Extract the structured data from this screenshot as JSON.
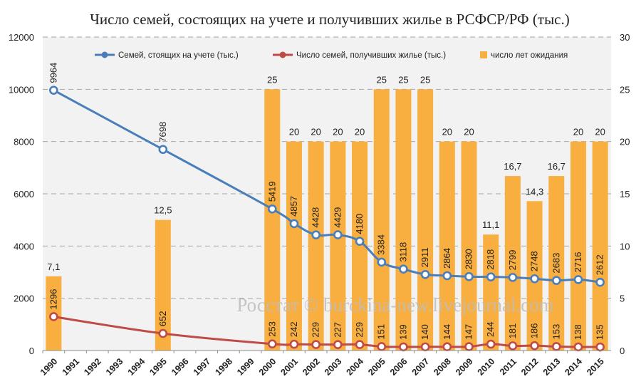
{
  "title": "Число семей, состоящих на учете и получивших жилье в РСФСР/РФ (тыс.)",
  "watermark": "Росстат © burckina-new.livejournal.com",
  "colors": {
    "queue_line": "#4A7EBB",
    "received_line": "#BE4B48",
    "bars": "#F9AF3F",
    "plot_bg": "#F2F2F2",
    "grid": "#A6A6A6"
  },
  "chart_data": {
    "type": "bar",
    "categories": [
      "1990",
      "1991",
      "1992",
      "1993",
      "1994",
      "1995",
      "1996",
      "1997",
      "1998",
      "1999",
      "2000",
      "2001",
      "2002",
      "2003",
      "2004",
      "2005",
      "2006",
      "2007",
      "2008",
      "2009",
      "2010",
      "2011",
      "2012",
      "2013",
      "2014",
      "2015"
    ],
    "y_left": {
      "ylim": [
        0,
        12000
      ],
      "ticks": [
        "0",
        "2000",
        "4000",
        "6000",
        "8000",
        "10000",
        "12000"
      ]
    },
    "y_right": {
      "ylim": [
        0,
        30
      ],
      "ticks": [
        "0",
        "5",
        "10",
        "15",
        "20",
        "25",
        "30"
      ]
    },
    "grid": true,
    "legend_position": "top",
    "series": [
      {
        "name": "Семей, стоящих на учете (тыс.)",
        "type": "line",
        "axis": "left",
        "x": [
          "1990",
          "1995",
          "2000",
          "2001",
          "2002",
          "2003",
          "2004",
          "2005",
          "2006",
          "2007",
          "2008",
          "2009",
          "2010",
          "2011",
          "2012",
          "2013",
          "2014",
          "2015"
        ],
        "values": [
          9964,
          7698,
          5419,
          4857,
          4428,
          4429,
          4180,
          3384,
          3118,
          2911,
          2864,
          2830,
          2818,
          2799,
          2748,
          2683,
          2716,
          2612
        ],
        "labels": [
          "9964",
          "7698",
          "5419",
          "4857",
          "4428",
          "4429",
          "4180",
          "3384",
          "3118",
          "2911",
          "2864",
          "2830",
          "2818",
          "2799",
          "2748",
          "2683",
          "2716",
          "2612"
        ]
      },
      {
        "name": "Число семей, получивших жилье (тыс.)",
        "type": "line",
        "axis": "left",
        "x": [
          "1990",
          "1995",
          "2000",
          "2001",
          "2002",
          "2003",
          "2004",
          "2005",
          "2006",
          "2007",
          "2008",
          "2009",
          "2010",
          "2011",
          "2012",
          "2013",
          "2014",
          "2015"
        ],
        "values": [
          1296,
          652,
          253,
          242,
          229,
          227,
          229,
          151,
          139,
          140,
          144,
          147,
          244,
          181,
          186,
          153,
          138,
          135
        ],
        "labels": [
          "1296",
          "652",
          "253",
          "242",
          "229",
          "227",
          "229",
          "151",
          "139",
          "140",
          "144",
          "147",
          "244",
          "181",
          "186",
          "153",
          "138",
          "135"
        ]
      },
      {
        "name": "число лет ожидания",
        "type": "bar",
        "axis": "right",
        "x": [
          "1990",
          "1995",
          "2000",
          "2001",
          "2002",
          "2003",
          "2004",
          "2005",
          "2006",
          "2007",
          "2008",
          "2009",
          "2010",
          "2011",
          "2012",
          "2013",
          "2014",
          "2015"
        ],
        "values": [
          7.1,
          12.5,
          25,
          20,
          20,
          20,
          20,
          25,
          25,
          25,
          20,
          20,
          11.1,
          16.7,
          14.3,
          16.7,
          20,
          20
        ],
        "labels": [
          "7,1",
          "12,5",
          "25",
          "20",
          "20",
          "20",
          "20",
          "25",
          "25",
          "25",
          "20",
          "20",
          "11,1",
          "16,7",
          "14,3",
          "16,7",
          "20",
          "20"
        ]
      }
    ]
  }
}
